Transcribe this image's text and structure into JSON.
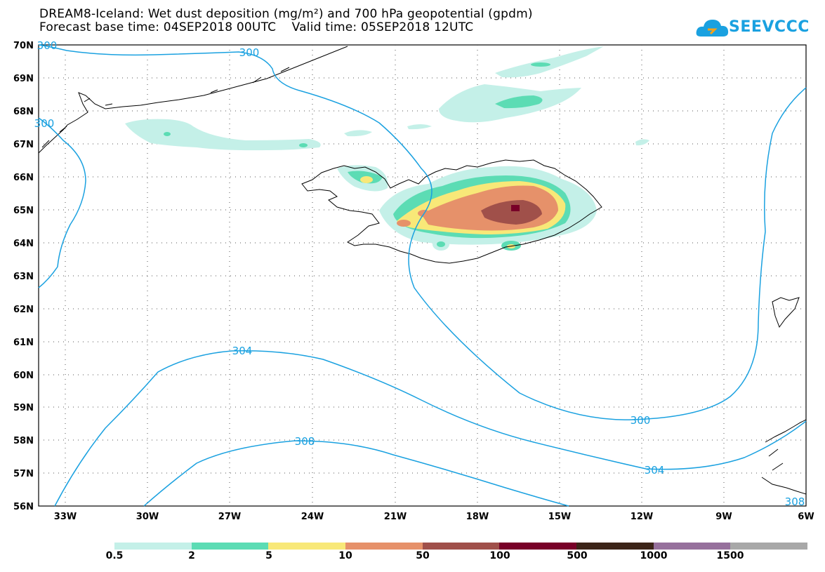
{
  "header": {
    "title_line1": "DREAM8-Iceland: Wet dust deposition (mg/m²) and 700 hPa geopotential (gpdm)",
    "title_line2": "Forecast base time: 04SEP2018 00UTC    Valid time: 05SEP2018 12UTC",
    "logo_text": "SEEVCCC",
    "logo_color": "#1aa1e0"
  },
  "map": {
    "lat_labels": [
      "70N",
      "69N",
      "68N",
      "67N",
      "66N",
      "65N",
      "64N",
      "63N",
      "62N",
      "61N",
      "60N",
      "59N",
      "58N",
      "57N",
      "56N"
    ],
    "lon_labels": [
      "33W",
      "30W",
      "27W",
      "24W",
      "21W",
      "18W",
      "15W",
      "12W",
      "9W",
      "6W"
    ],
    "contour_labels": [
      "300",
      "300",
      "300",
      "304",
      "308",
      "304",
      "300",
      "308"
    ],
    "contour_color": "#1aa1e0",
    "coastline_color": "#000000"
  },
  "legend": {
    "labels": [
      "0.5",
      "2",
      "5",
      "10",
      "50",
      "100",
      "500",
      "1000",
      "1500"
    ],
    "colors": [
      "#c4f0e8",
      "#5cdcb4",
      "#f8e878",
      "#e6916a",
      "#a0504a",
      "#780028",
      "#3c2418",
      "#96709c",
      "#a8a8a8"
    ]
  }
}
